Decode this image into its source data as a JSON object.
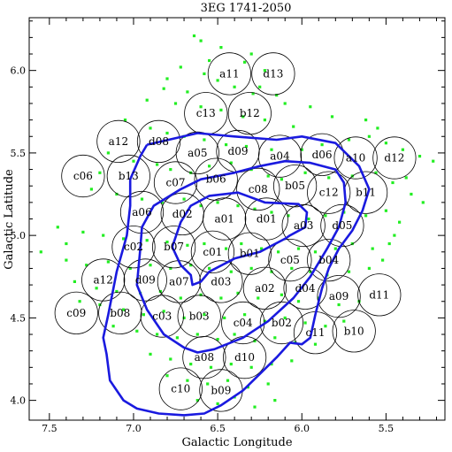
{
  "chart_data": {
    "type": "scatter",
    "title": "3EG 1741-2050",
    "xlabel": "Galactic Longitude",
    "ylabel": "Galactic Latitude",
    "xlim": [
      7.62,
      5.15
    ],
    "ylim": [
      3.88,
      6.32
    ],
    "x_reversed": true,
    "x_ticks": [
      "7.5",
      "7.0",
      "6.5",
      "6.0",
      "5.5"
    ],
    "x_tick_values": [
      7.5,
      7.0,
      6.5,
      6.0,
      5.5
    ],
    "y_ticks": [
      "4.0",
      "4.5",
      "5.0",
      "5.5",
      "6.0"
    ],
    "y_tick_values": [
      4.0,
      4.5,
      5.0,
      5.5,
      6.0
    ],
    "field_radius": 0.127,
    "fields": [
      {
        "label": "a11",
        "x": 6.43,
        "y": 5.98
      },
      {
        "label": "d13",
        "x": 6.17,
        "y": 5.98
      },
      {
        "label": "c13",
        "x": 6.57,
        "y": 5.74
      },
      {
        "label": "b12",
        "x": 6.31,
        "y": 5.74
      },
      {
        "label": "a12",
        "x": 7.09,
        "y": 5.57
      },
      {
        "label": "d08",
        "x": 6.85,
        "y": 5.57
      },
      {
        "label": "a05",
        "x": 6.62,
        "y": 5.5
      },
      {
        "label": "d09",
        "x": 6.38,
        "y": 5.51
      },
      {
        "label": "a04",
        "x": 6.13,
        "y": 5.48
      },
      {
        "label": "d06",
        "x": 5.88,
        "y": 5.49
      },
      {
        "label": "a10",
        "x": 5.68,
        "y": 5.47
      },
      {
        "label": "d12",
        "x": 5.45,
        "y": 5.47
      },
      {
        "label": "c06",
        "x": 7.3,
        "y": 5.36
      },
      {
        "label": "b13",
        "x": 7.03,
        "y": 5.36
      },
      {
        "label": "c07",
        "x": 6.75,
        "y": 5.32
      },
      {
        "label": "b06",
        "x": 6.51,
        "y": 5.34
      },
      {
        "label": "c08",
        "x": 6.26,
        "y": 5.28
      },
      {
        "label": "b05",
        "x": 6.04,
        "y": 5.3
      },
      {
        "label": "c12",
        "x": 5.84,
        "y": 5.26
      },
      {
        "label": "b11",
        "x": 5.62,
        "y": 5.26
      },
      {
        "label": "a06",
        "x": 6.95,
        "y": 5.14
      },
      {
        "label": "d02",
        "x": 6.71,
        "y": 5.13
      },
      {
        "label": "a01",
        "x": 6.46,
        "y": 5.1
      },
      {
        "label": "d01",
        "x": 6.21,
        "y": 5.1
      },
      {
        "label": "a03",
        "x": 5.99,
        "y": 5.06
      },
      {
        "label": "d05",
        "x": 5.76,
        "y": 5.06
      },
      {
        "label": "c02",
        "x": 7.0,
        "y": 4.93
      },
      {
        "label": "b07",
        "x": 6.76,
        "y": 4.93
      },
      {
        "label": "c01",
        "x": 6.53,
        "y": 4.9
      },
      {
        "label": "b01",
        "x": 6.31,
        "y": 4.89
      },
      {
        "label": "c05",
        "x": 6.07,
        "y": 4.85
      },
      {
        "label": "b04",
        "x": 5.84,
        "y": 4.85
      },
      {
        "label": "a12",
        "x": 7.18,
        "y": 4.73
      },
      {
        "label": "d09",
        "x": 6.93,
        "y": 4.73
      },
      {
        "label": "a07",
        "x": 6.73,
        "y": 4.72
      },
      {
        "label": "d03",
        "x": 6.48,
        "y": 4.72
      },
      {
        "label": "a02",
        "x": 6.22,
        "y": 4.68
      },
      {
        "label": "d04",
        "x": 5.98,
        "y": 4.68
      },
      {
        "label": "a09",
        "x": 5.78,
        "y": 4.63
      },
      {
        "label": "d11",
        "x": 5.54,
        "y": 4.64
      },
      {
        "label": "c09",
        "x": 7.34,
        "y": 4.53
      },
      {
        "label": "b08",
        "x": 7.08,
        "y": 4.53
      },
      {
        "label": "c03",
        "x": 6.83,
        "y": 4.51
      },
      {
        "label": "b03",
        "x": 6.61,
        "y": 4.51
      },
      {
        "label": "c04",
        "x": 6.35,
        "y": 4.47
      },
      {
        "label": "b02",
        "x": 6.12,
        "y": 4.47
      },
      {
        "label": "c11",
        "x": 5.92,
        "y": 4.41
      },
      {
        "label": "b10",
        "x": 5.69,
        "y": 4.42
      },
      {
        "label": "a08",
        "x": 6.58,
        "y": 4.26
      },
      {
        "label": "d10",
        "x": 6.34,
        "y": 4.26
      },
      {
        "label": "c10",
        "x": 6.72,
        "y": 4.07
      },
      {
        "label": "b09",
        "x": 6.48,
        "y": 4.06
      }
    ],
    "contours": [
      {
        "level": "inner",
        "points": [
          [
            6.77,
            4.93
          ],
          [
            6.72,
            5.08
          ],
          [
            6.66,
            5.18
          ],
          [
            6.55,
            5.24
          ],
          [
            6.38,
            5.26
          ],
          [
            6.22,
            5.2
          ],
          [
            6.02,
            5.19
          ],
          [
            5.97,
            5.14
          ],
          [
            5.98,
            5.05
          ],
          [
            6.07,
            5.0
          ],
          [
            6.1,
            4.98
          ],
          [
            6.25,
            4.9
          ],
          [
            6.4,
            4.86
          ],
          [
            6.55,
            4.78
          ],
          [
            6.6,
            4.72
          ],
          [
            6.65,
            4.7
          ],
          [
            6.66,
            4.76
          ],
          [
            6.72,
            4.82
          ],
          [
            6.77,
            4.93
          ]
        ]
      },
      {
        "level": "middle",
        "points": [
          [
            6.96,
            4.92
          ],
          [
            6.95,
            5.05
          ],
          [
            6.88,
            5.18
          ],
          [
            6.72,
            5.28
          ],
          [
            6.6,
            5.34
          ],
          [
            6.4,
            5.38
          ],
          [
            6.25,
            5.42
          ],
          [
            6.1,
            5.45
          ],
          [
            5.95,
            5.44
          ],
          [
            5.8,
            5.4
          ],
          [
            5.75,
            5.32
          ],
          [
            5.74,
            5.2
          ],
          [
            5.78,
            5.05
          ],
          [
            5.85,
            4.92
          ],
          [
            5.95,
            4.75
          ],
          [
            6.05,
            4.62
          ],
          [
            6.2,
            4.48
          ],
          [
            6.35,
            4.38
          ],
          [
            6.52,
            4.31
          ],
          [
            6.62,
            4.29
          ],
          [
            6.7,
            4.32
          ],
          [
            6.82,
            4.4
          ],
          [
            6.92,
            4.55
          ],
          [
            6.98,
            4.7
          ],
          [
            6.96,
            4.92
          ]
        ]
      },
      {
        "level": "outer",
        "points": [
          [
            6.92,
            5.55
          ],
          [
            6.62,
            5.62
          ],
          [
            6.4,
            5.6
          ],
          [
            6.15,
            5.58
          ],
          [
            6.0,
            5.6
          ],
          [
            5.8,
            5.56
          ],
          [
            5.66,
            5.42
          ],
          [
            5.6,
            5.28
          ],
          [
            5.64,
            5.15
          ],
          [
            5.7,
            5.03
          ],
          [
            5.78,
            4.92
          ],
          [
            5.84,
            4.8
          ],
          [
            5.88,
            4.68
          ],
          [
            5.92,
            4.52
          ],
          [
            5.95,
            4.38
          ],
          [
            6.0,
            4.34
          ],
          [
            6.07,
            4.35
          ],
          [
            6.15,
            4.26
          ],
          [
            6.25,
            4.16
          ],
          [
            6.35,
            4.06
          ],
          [
            6.48,
            3.97
          ],
          [
            6.58,
            3.92
          ],
          [
            6.7,
            3.91
          ],
          [
            6.85,
            3.92
          ],
          [
            6.98,
            3.95
          ],
          [
            7.06,
            4.0
          ],
          [
            7.14,
            4.12
          ],
          [
            7.16,
            4.28
          ],
          [
            7.18,
            4.38
          ],
          [
            7.15,
            4.52
          ],
          [
            7.1,
            4.78
          ],
          [
            7.04,
            5.0
          ],
          [
            7.02,
            5.18
          ],
          [
            7.02,
            5.34
          ],
          [
            6.96,
            5.48
          ],
          [
            6.92,
            5.55
          ]
        ]
      }
    ],
    "points": [
      [
        6.64,
        6.21
      ],
      [
        6.6,
        6.18
      ],
      [
        6.48,
        6.14
      ],
      [
        6.55,
        6.06
      ],
      [
        6.34,
        6.05
      ],
      [
        6.72,
        6.02
      ],
      [
        6.22,
        6.0
      ],
      [
        6.5,
        5.94
      ],
      [
        6.4,
        5.9
      ],
      [
        6.82,
        5.89
      ],
      [
        6.68,
        5.87
      ],
      [
        6.29,
        5.86
      ],
      [
        6.15,
        5.85
      ],
      [
        6.92,
        5.82
      ],
      [
        6.75,
        5.8
      ],
      [
        6.6,
        5.78
      ],
      [
        6.48,
        5.76
      ],
      [
        6.35,
        5.72
      ],
      [
        6.22,
        5.7
      ],
      [
        6.05,
        5.66
      ],
      [
        7.05,
        5.7
      ],
      [
        6.9,
        5.65
      ],
      [
        6.8,
        5.62
      ],
      [
        6.7,
        5.6
      ],
      [
        6.58,
        5.58
      ],
      [
        6.45,
        5.55
      ],
      [
        6.33,
        5.54
      ],
      [
        6.18,
        5.52
      ],
      [
        6.0,
        5.52
      ],
      [
        5.88,
        5.55
      ],
      [
        5.72,
        5.58
      ],
      [
        5.6,
        5.6
      ],
      [
        5.5,
        5.56
      ],
      [
        5.4,
        5.52
      ],
      [
        5.3,
        5.48
      ],
      [
        5.22,
        5.45
      ],
      [
        7.15,
        5.5
      ],
      [
        7.0,
        5.45
      ],
      [
        6.86,
        5.43
      ],
      [
        6.78,
        5.4
      ],
      [
        6.66,
        5.38
      ],
      [
        6.55,
        5.42
      ],
      [
        6.42,
        5.44
      ],
      [
        6.3,
        5.4
      ],
      [
        6.2,
        5.36
      ],
      [
        6.12,
        5.34
      ],
      [
        5.98,
        5.38
      ],
      [
        5.84,
        5.35
      ],
      [
        5.7,
        5.36
      ],
      [
        5.56,
        5.38
      ],
      [
        5.46,
        5.32
      ],
      [
        5.35,
        5.25
      ],
      [
        7.25,
        5.28
      ],
      [
        7.1,
        5.25
      ],
      [
        6.95,
        5.22
      ],
      [
        6.83,
        5.2
      ],
      [
        6.7,
        5.22
      ],
      [
        6.6,
        5.18
      ],
      [
        6.5,
        5.2
      ],
      [
        6.38,
        5.18
      ],
      [
        6.28,
        5.16
      ],
      [
        6.18,
        5.14
      ],
      [
        6.08,
        5.12
      ],
      [
        5.96,
        5.1
      ],
      [
        5.86,
        5.12
      ],
      [
        5.75,
        5.14
      ],
      [
        5.62,
        5.12
      ],
      [
        5.5,
        5.15
      ],
      [
        5.42,
        5.08
      ],
      [
        7.45,
        5.05
      ],
      [
        7.3,
        5.02
      ],
      [
        7.18,
        5.0
      ],
      [
        7.06,
        4.98
      ],
      [
        6.92,
        4.97
      ],
      [
        6.8,
        4.96
      ],
      [
        6.68,
        4.94
      ],
      [
        6.58,
        4.95
      ],
      [
        6.45,
        4.92
      ],
      [
        6.36,
        4.95
      ],
      [
        6.24,
        4.92
      ],
      [
        6.14,
        4.9
      ],
      [
        6.02,
        4.92
      ],
      [
        5.92,
        4.9
      ],
      [
        5.8,
        4.92
      ],
      [
        5.7,
        4.95
      ],
      [
        5.58,
        4.92
      ],
      [
        5.48,
        4.95
      ],
      [
        7.55,
        4.9
      ],
      [
        7.4,
        4.85
      ],
      [
        7.28,
        4.82
      ],
      [
        7.15,
        4.84
      ],
      [
        7.02,
        4.8
      ],
      [
        6.9,
        4.82
      ],
      [
        6.78,
        4.8
      ],
      [
        6.66,
        4.82
      ],
      [
        6.55,
        4.8
      ],
      [
        6.42,
        4.78
      ],
      [
        6.3,
        4.8
      ],
      [
        6.18,
        4.78
      ],
      [
        6.06,
        4.8
      ],
      [
        5.95,
        4.78
      ],
      [
        5.85,
        4.76
      ],
      [
        5.72,
        4.78
      ],
      [
        5.6,
        4.8
      ],
      [
        7.35,
        4.72
      ],
      [
        7.22,
        4.68
      ],
      [
        7.1,
        4.66
      ],
      [
        6.96,
        4.65
      ],
      [
        6.84,
        4.66
      ],
      [
        6.72,
        4.62
      ],
      [
        6.6,
        4.64
      ],
      [
        6.48,
        4.62
      ],
      [
        6.38,
        4.65
      ],
      [
        6.26,
        4.62
      ],
      [
        6.12,
        4.64
      ],
      [
        6.02,
        4.6
      ],
      [
        5.9,
        4.62
      ],
      [
        5.78,
        4.58
      ],
      [
        5.66,
        4.6
      ],
      [
        7.2,
        4.58
      ],
      [
        7.06,
        4.55
      ],
      [
        6.94,
        4.52
      ],
      [
        6.82,
        4.54
      ],
      [
        6.7,
        4.5
      ],
      [
        6.58,
        4.52
      ],
      [
        6.46,
        4.5
      ],
      [
        6.34,
        4.52
      ],
      [
        6.22,
        4.48
      ],
      [
        6.1,
        4.5
      ],
      [
        5.98,
        4.47
      ],
      [
        5.86,
        4.45
      ],
      [
        5.75,
        4.48
      ],
      [
        7.12,
        4.45
      ],
      [
        6.98,
        4.42
      ],
      [
        6.86,
        4.4
      ],
      [
        6.74,
        4.38
      ],
      [
        6.62,
        4.4
      ],
      [
        6.5,
        4.37
      ],
      [
        6.4,
        4.4
      ],
      [
        6.28,
        4.36
      ],
      [
        6.16,
        4.38
      ],
      [
        6.04,
        4.35
      ],
      [
        5.92,
        4.34
      ],
      [
        6.9,
        4.28
      ],
      [
        6.78,
        4.25
      ],
      [
        6.66,
        4.22
      ],
      [
        6.54,
        4.2
      ],
      [
        6.42,
        4.22
      ],
      [
        6.3,
        4.2
      ],
      [
        6.18,
        4.22
      ],
      [
        6.06,
        4.24
      ],
      [
        6.8,
        4.15
      ],
      [
        6.68,
        4.12
      ],
      [
        6.56,
        4.1
      ],
      [
        6.44,
        4.12
      ],
      [
        6.32,
        4.08
      ],
      [
        6.2,
        4.1
      ],
      [
        6.62,
        4.0
      ],
      [
        6.5,
        3.98
      ],
      [
        6.4,
        4.02
      ],
      [
        6.28,
        3.96
      ],
      [
        6.16,
        4.0
      ],
      [
        5.62,
        5.7
      ],
      [
        5.55,
        5.65
      ],
      [
        5.82,
        5.72
      ],
      [
        5.95,
        5.78
      ],
      [
        6.1,
        5.8
      ],
      [
        6.25,
        5.9
      ],
      [
        6.58,
        5.98
      ],
      [
        6.3,
        6.1
      ],
      [
        6.8,
        5.95
      ],
      [
        7.2,
        5.38
      ],
      [
        7.4,
        4.95
      ],
      [
        7.32,
        4.6
      ],
      [
        5.38,
        5.35
      ],
      [
        5.45,
        5.0
      ],
      [
        5.52,
        4.85
      ],
      [
        5.28,
        5.2
      ]
    ]
  }
}
